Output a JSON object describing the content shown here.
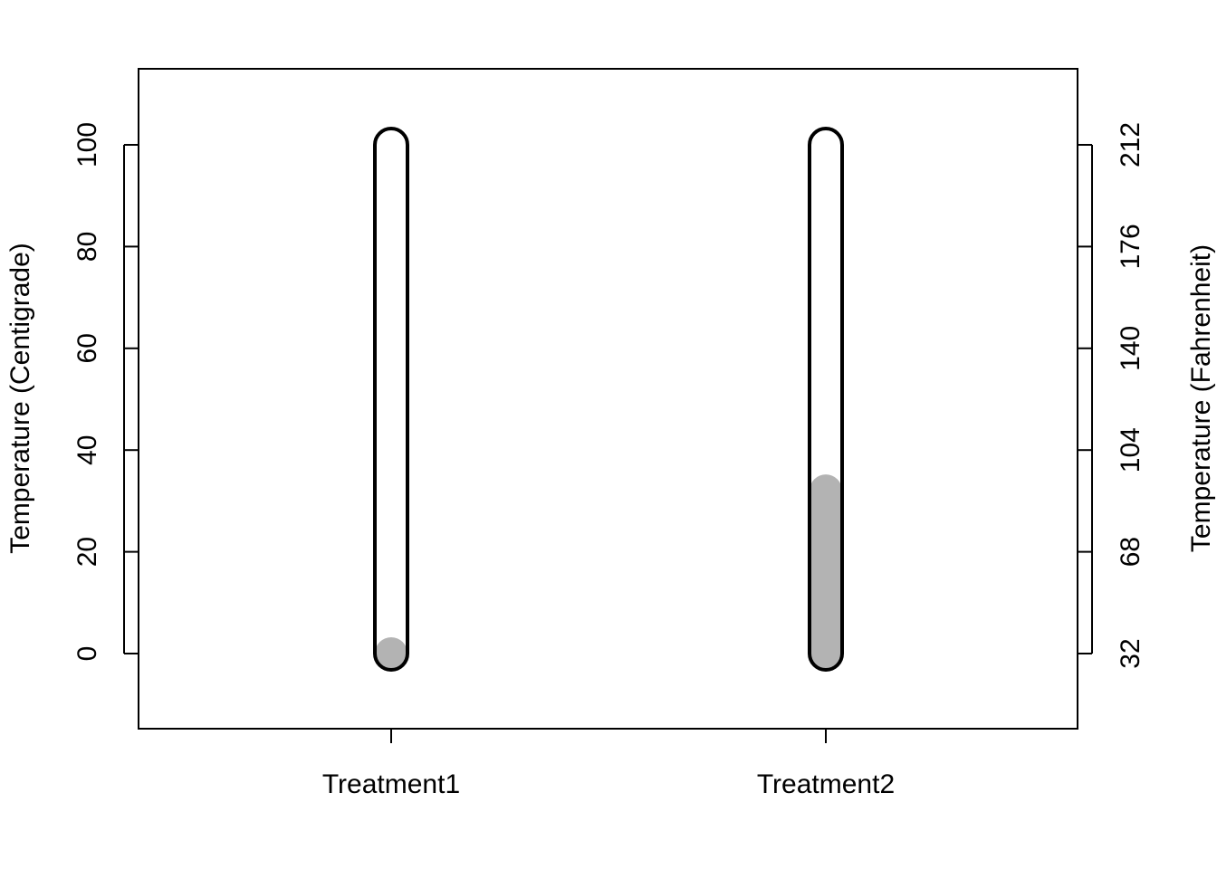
{
  "chart_data": {
    "type": "thermometer",
    "categories": [
      "Treatment1",
      "Treatment2"
    ],
    "values": [
      0,
      32
    ],
    "tube_range": [
      0,
      100
    ],
    "ylabel": "Temperature (Centigrade)",
    "ylabel_right": "Temperature (Fahrenheit)",
    "ylim": [
      -15,
      115
    ],
    "y_ticks": [
      0,
      20,
      40,
      60,
      80,
      100
    ],
    "y_ticks_right": [
      32,
      68,
      104,
      140,
      176,
      212
    ],
    "grid": false,
    "fill_color": "#b3b3b3",
    "outline_color": "#000000"
  }
}
